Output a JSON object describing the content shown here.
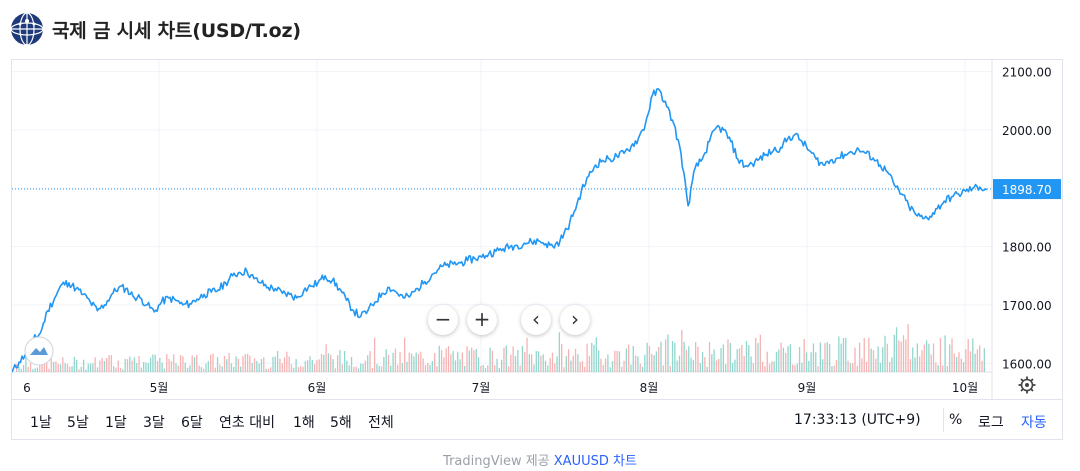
{
  "header": {
    "title": "국제 금 시세 차트(USD/T.oz)"
  },
  "chart_data": {
    "type": "line",
    "x_month_labels": [
      "6",
      "5월",
      "6월",
      "7월",
      "8월",
      "9월",
      "10월"
    ],
    "y_tick_labels": [
      "2100.00",
      "2000.00",
      "1900.00",
      "1800.00",
      "1700.00",
      "1600.00"
    ],
    "ylim": [
      1585,
      2120
    ],
    "last_price": "1898.70",
    "colors": {
      "line": "#2196f3",
      "last_price_label": "#2196f3",
      "volume_up": "#7fcfc4",
      "volume_down": "#f4a6a6"
    },
    "grid": true,
    "volume_bars": true,
    "series": [
      {
        "values": [
          1585,
          1602,
          1618,
          1640,
          1652,
          1690,
          1712,
          1735,
          1738,
          1728,
          1718,
          1705,
          1690,
          1700,
          1718,
          1730,
          1728,
          1715,
          1712,
          1700,
          1688,
          1705,
          1712,
          1708,
          1700,
          1702,
          1710,
          1718,
          1722,
          1726,
          1738,
          1750,
          1756,
          1758,
          1745,
          1738,
          1730,
          1728,
          1720,
          1718,
          1712,
          1725,
          1732,
          1738,
          1750,
          1742,
          1728,
          1708,
          1690,
          1680,
          1690,
          1705,
          1720,
          1730,
          1722,
          1712,
          1716,
          1728,
          1740,
          1752,
          1762,
          1768,
          1770,
          1772,
          1776,
          1780,
          1782,
          1788,
          1792,
          1796,
          1800,
          1802,
          1806,
          1808,
          1810,
          1805,
          1800,
          1810,
          1830,
          1860,
          1895,
          1920,
          1940,
          1948,
          1950,
          1955,
          1960,
          1972,
          1985,
          2010,
          2060,
          2068,
          2040,
          2010,
          1960,
          1870,
          1935,
          1950,
          1980,
          2005,
          2000,
          1980,
          1950,
          1938,
          1942,
          1950,
          1958,
          1965,
          1970,
          1985,
          1992,
          1980,
          1965,
          1950,
          1940,
          1948,
          1952,
          1958,
          1962,
          1966,
          1960,
          1952,
          1940,
          1928,
          1905,
          1890,
          1870,
          1855,
          1848,
          1852,
          1865,
          1878,
          1885,
          1890,
          1895,
          1900,
          1902,
          1898
        ]
      }
    ]
  },
  "toolbar": {
    "ranges": [
      "1날",
      "5날",
      "1달",
      "3달",
      "6달",
      "연초 대비",
      "1해",
      "5해",
      "전체"
    ],
    "clock": "17:33:13 (UTC+9)",
    "percent": "%",
    "log": "로그",
    "auto": "자동"
  },
  "footer": {
    "prefix": "TradingView 제공 ",
    "link": "XAUUSD 차트"
  }
}
